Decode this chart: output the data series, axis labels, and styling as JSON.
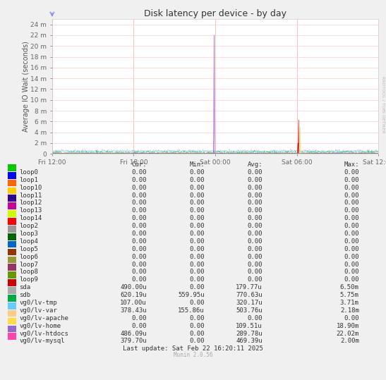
{
  "title": "Disk latency per device - by day",
  "ylabel": "Average IO Wait (seconds)",
  "background_color": "#f0f0f0",
  "plot_bg_color": "#ffffff",
  "grid_color_v": "#ffaaaa",
  "grid_color_h": "#ffcccc",
  "ytick_labels": [
    "0",
    "2 m",
    "4 m",
    "6 m",
    "8 m",
    "10 m",
    "12 m",
    "14 m",
    "16 m",
    "18 m",
    "20 m",
    "22 m",
    "24 m"
  ],
  "ytick_values": [
    0,
    0.002,
    0.004,
    0.006,
    0.008,
    0.01,
    0.012,
    0.014,
    0.016,
    0.018,
    0.02,
    0.022,
    0.024
  ],
  "xtick_labels": [
    "Fri 12:00",
    "Fri 18:00",
    "Sat 00:00",
    "Sat 06:00",
    "Sat 12:00"
  ],
  "rrdtool_label": "RRDTOOL / TOBI OETIKER",
  "legend_entries": [
    {
      "label": "loop0",
      "color": "#00cc00"
    },
    {
      "label": "loop1",
      "color": "#0000ff"
    },
    {
      "label": "loop10",
      "color": "#ff6600"
    },
    {
      "label": "loop11",
      "color": "#ffcc00"
    },
    {
      "label": "loop12",
      "color": "#330099"
    },
    {
      "label": "loop13",
      "color": "#cc0099"
    },
    {
      "label": "loop14",
      "color": "#ccff00"
    },
    {
      "label": "loop2",
      "color": "#ff0000"
    },
    {
      "label": "loop3",
      "color": "#999999"
    },
    {
      "label": "loop4",
      "color": "#006600"
    },
    {
      "label": "loop5",
      "color": "#0066cc"
    },
    {
      "label": "loop6",
      "color": "#993300"
    },
    {
      "label": "loop7",
      "color": "#999933"
    },
    {
      "label": "loop8",
      "color": "#993366"
    },
    {
      "label": "loop9",
      "color": "#669900"
    },
    {
      "label": "sda",
      "color": "#cc0000"
    },
    {
      "label": "sdb",
      "color": "#aaaaaa"
    },
    {
      "label": "vg0/lv-tmp",
      "color": "#00aa44"
    },
    {
      "label": "vg0/lv-var",
      "color": "#66ccff"
    },
    {
      "label": "vg0/lv-apache",
      "color": "#ffcc88"
    },
    {
      "label": "vg0/lv-home",
      "color": "#ffdd44"
    },
    {
      "label": "vg0/lv-htdocs",
      "color": "#9966cc"
    },
    {
      "label": "vg0/lv-mysql",
      "color": "#ff44aa"
    }
  ],
  "table_data": [
    [
      "loop0",
      "0.00",
      "0.00",
      "0.00",
      "0.00"
    ],
    [
      "loop1",
      "0.00",
      "0.00",
      "0.00",
      "0.00"
    ],
    [
      "loop10",
      "0.00",
      "0.00",
      "0.00",
      "0.00"
    ],
    [
      "loop11",
      "0.00",
      "0.00",
      "0.00",
      "0.00"
    ],
    [
      "loop12",
      "0.00",
      "0.00",
      "0.00",
      "0.00"
    ],
    [
      "loop13",
      "0.00",
      "0.00",
      "0.00",
      "0.00"
    ],
    [
      "loop14",
      "0.00",
      "0.00",
      "0.00",
      "0.00"
    ],
    [
      "loop2",
      "0.00",
      "0.00",
      "0.00",
      "0.00"
    ],
    [
      "loop3",
      "0.00",
      "0.00",
      "0.00",
      "0.00"
    ],
    [
      "loop4",
      "0.00",
      "0.00",
      "0.00",
      "0.00"
    ],
    [
      "loop5",
      "0.00",
      "0.00",
      "0.00",
      "0.00"
    ],
    [
      "loop6",
      "0.00",
      "0.00",
      "0.00",
      "0.00"
    ],
    [
      "loop7",
      "0.00",
      "0.00",
      "0.00",
      "0.00"
    ],
    [
      "loop8",
      "0.00",
      "0.00",
      "0.00",
      "0.00"
    ],
    [
      "loop9",
      "0.00",
      "0.00",
      "0.00",
      "0.00"
    ],
    [
      "sda",
      "490.00u",
      "0.00",
      "179.77u",
      "6.50m"
    ],
    [
      "sdb",
      "620.19u",
      "559.95u",
      "770.63u",
      "5.75m"
    ],
    [
      "vg0/lv-tmp",
      "107.00u",
      "0.00",
      "320.17u",
      "3.71m"
    ],
    [
      "vg0/lv-var",
      "378.43u",
      "155.86u",
      "503.76u",
      "2.18m"
    ],
    [
      "vg0/lv-apache",
      "0.00",
      "0.00",
      "0.00",
      "0.00"
    ],
    [
      "vg0/lv-home",
      "0.00",
      "0.00",
      "109.51u",
      "18.90m"
    ],
    [
      "vg0/lv-htdocs",
      "486.09u",
      "0.00",
      "289.78u",
      "22.02m"
    ],
    [
      "vg0/lv-mysql",
      "379.70u",
      "0.00",
      "469.39u",
      "2.00m"
    ]
  ],
  "footer": "Last update: Sat Feb 22 16:20:11 2025",
  "munin_version": "Munin 2.0.56"
}
